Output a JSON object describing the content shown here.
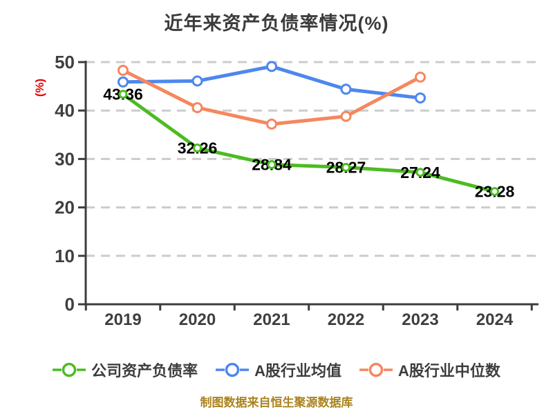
{
  "title": "近年来资产负债率情况(%)",
  "colors": {
    "title": "#3b3b3b",
    "axis": "#3d3d3d",
    "tick_label": "#3f3f3f",
    "gridline": "#cccccc",
    "data_label": "#000000",
    "y_axis_label": "#e60000",
    "source_note": "#aa831d",
    "company_series": "#4bbc22",
    "industry_mean_series": "#4e87ec",
    "industry_median_series": "#f5875f"
  },
  "chart_data": {
    "type": "line",
    "title": "近年来资产负债率情况(%)",
    "xlabel": "",
    "ylabel": "(%)",
    "categories": [
      "2019",
      "2020",
      "2021",
      "2022",
      "2023",
      "2024"
    ],
    "ylim": [
      0,
      50
    ],
    "ytick_step": 10,
    "yticks": [
      0,
      10,
      20,
      30,
      40,
      50
    ],
    "grid": "horizontal-dashed",
    "legend_position": "bottom",
    "series": [
      {
        "name": "公司资产负债率",
        "color": "#4bbc22",
        "values": [
          43.36,
          32.26,
          28.84,
          28.27,
          27.24,
          23.28
        ],
        "point_labels": [
          "43.36",
          "32.26",
          "28.84",
          "28.27",
          "27.24",
          "23.28"
        ]
      },
      {
        "name": "A股行业均值",
        "color": "#4e87ec",
        "values": [
          45.9,
          46.1,
          49.1,
          44.4,
          42.6,
          null
        ]
      },
      {
        "name": "A股行业中位数",
        "color": "#f5875f",
        "values": [
          48.3,
          40.6,
          37.2,
          38.8,
          46.9,
          null
        ]
      }
    ],
    "source_note": "制图数据来自恒生聚源数据库"
  }
}
